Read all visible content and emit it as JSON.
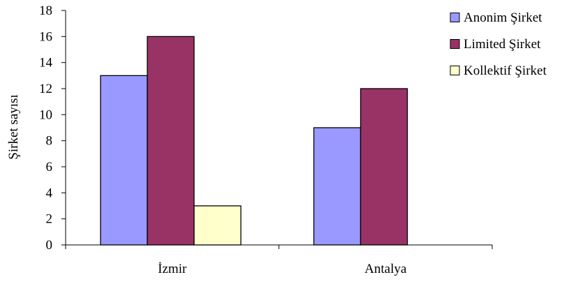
{
  "chart_data": {
    "type": "bar",
    "categories": [
      "İzmir",
      "Antalya"
    ],
    "series": [
      {
        "name": "Anonim Şirket",
        "values": [
          13,
          9
        ],
        "color": "#9999ff"
      },
      {
        "name": "Limited Şirket",
        "values": [
          16,
          12
        ],
        "color": "#993366"
      },
      {
        "name": "Kollektif Şirket",
        "values": [
          3,
          0
        ],
        "color": "#ffffcc"
      }
    ],
    "ylabel": "Şirket sayısı",
    "ylim": [
      0,
      18
    ],
    "yticks": [
      "0",
      "2",
      "4",
      "6",
      "8",
      "10",
      "12",
      "14",
      "16",
      "18"
    ],
    "legend_position": "right",
    "grid": false
  }
}
